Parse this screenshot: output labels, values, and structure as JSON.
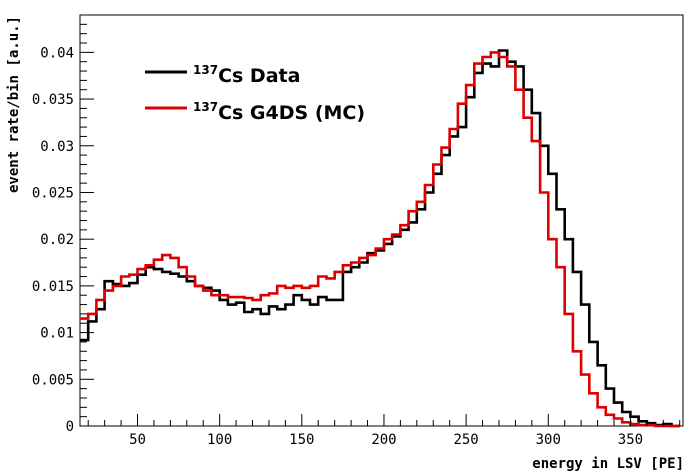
{
  "chart_data": {
    "type": "line",
    "xlabel": "energy in LSV [PE]",
    "ylabel": "event rate/bin [a.u.]",
    "xlim": [
      15,
      382
    ],
    "ylim": [
      0,
      0.044
    ],
    "xticks": [
      50,
      100,
      150,
      200,
      250,
      300,
      350
    ],
    "yticks": [
      0,
      0.005,
      0.01,
      0.015,
      0.02,
      0.025,
      0.03,
      0.035,
      0.04
    ],
    "ytick_labels": [
      "0",
      "0.005",
      "0.01",
      "0.015",
      "0.02",
      "0.025",
      "0.03",
      "0.035",
      "0.04"
    ],
    "grid": false,
    "legend_position": "top-left",
    "legend": [
      {
        "sup": "137",
        "text": "Cs Data",
        "color": "#000000"
      },
      {
        "sup": "137",
        "text": "Cs G4DS (MC)",
        "color": "#dd0000"
      }
    ],
    "series": [
      {
        "legend_index": 0,
        "color": "#000000",
        "bin_edges": [
          15,
          20,
          25,
          30,
          35,
          40,
          45,
          50,
          55,
          60,
          65,
          70,
          75,
          80,
          85,
          90,
          95,
          100,
          105,
          110,
          115,
          120,
          125,
          130,
          135,
          140,
          145,
          150,
          155,
          160,
          165,
          170,
          175,
          180,
          185,
          190,
          195,
          200,
          205,
          210,
          215,
          220,
          225,
          230,
          235,
          240,
          245,
          250,
          255,
          260,
          265,
          270,
          275,
          280,
          285,
          290,
          295,
          300,
          305,
          310,
          315,
          320,
          325,
          330,
          335,
          340,
          345,
          350,
          355,
          360,
          365,
          370,
          375,
          380
        ],
        "values": [
          0.0092,
          0.0112,
          0.0125,
          0.0155,
          0.0152,
          0.015,
          0.0153,
          0.0162,
          0.017,
          0.0168,
          0.0165,
          0.0163,
          0.016,
          0.0155,
          0.015,
          0.0148,
          0.0145,
          0.0135,
          0.013,
          0.0132,
          0.0122,
          0.0125,
          0.012,
          0.0128,
          0.0125,
          0.013,
          0.014,
          0.0135,
          0.013,
          0.0138,
          0.0135,
          0.0135,
          0.0165,
          0.017,
          0.0175,
          0.0185,
          0.0188,
          0.0195,
          0.0203,
          0.021,
          0.0218,
          0.0232,
          0.025,
          0.027,
          0.029,
          0.031,
          0.032,
          0.0352,
          0.0378,
          0.0388,
          0.0385,
          0.0402,
          0.039,
          0.0385,
          0.036,
          0.0335,
          0.03,
          0.027,
          0.0232,
          0.02,
          0.0165,
          0.013,
          0.009,
          0.0065,
          0.004,
          0.0025,
          0.0015,
          0.001,
          0.0005,
          0.0003,
          0.0001,
          0.0002,
          0.0
        ]
      },
      {
        "legend_index": 1,
        "color": "#dd0000",
        "bin_edges": [
          15,
          20,
          25,
          30,
          35,
          40,
          45,
          50,
          55,
          60,
          65,
          70,
          75,
          80,
          85,
          90,
          95,
          100,
          105,
          110,
          115,
          120,
          125,
          130,
          135,
          140,
          145,
          150,
          155,
          160,
          165,
          170,
          175,
          180,
          185,
          190,
          195,
          200,
          205,
          210,
          215,
          220,
          225,
          230,
          235,
          240,
          245,
          250,
          255,
          260,
          265,
          270,
          275,
          280,
          285,
          290,
          295,
          300,
          305,
          310,
          315,
          320,
          325,
          330,
          335,
          340,
          345,
          350,
          355,
          360,
          365,
          370,
          375,
          380
        ],
        "values": [
          0.0115,
          0.012,
          0.0135,
          0.0145,
          0.015,
          0.016,
          0.0162,
          0.0168,
          0.0172,
          0.0178,
          0.0183,
          0.018,
          0.017,
          0.016,
          0.015,
          0.0145,
          0.014,
          0.014,
          0.0138,
          0.0138,
          0.0137,
          0.0135,
          0.014,
          0.0142,
          0.015,
          0.0148,
          0.015,
          0.0148,
          0.015,
          0.016,
          0.0158,
          0.0165,
          0.0172,
          0.0175,
          0.018,
          0.0183,
          0.019,
          0.02,
          0.0205,
          0.0215,
          0.023,
          0.024,
          0.0258,
          0.028,
          0.0298,
          0.0318,
          0.0345,
          0.0365,
          0.0388,
          0.0395,
          0.04,
          0.0395,
          0.0385,
          0.036,
          0.033,
          0.0305,
          0.025,
          0.02,
          0.017,
          0.012,
          0.008,
          0.0055,
          0.0035,
          0.002,
          0.0012,
          0.0008,
          0.0004,
          0.0002,
          0.0001,
          0.0001,
          0.0,
          0.0,
          0.0
        ]
      }
    ]
  }
}
